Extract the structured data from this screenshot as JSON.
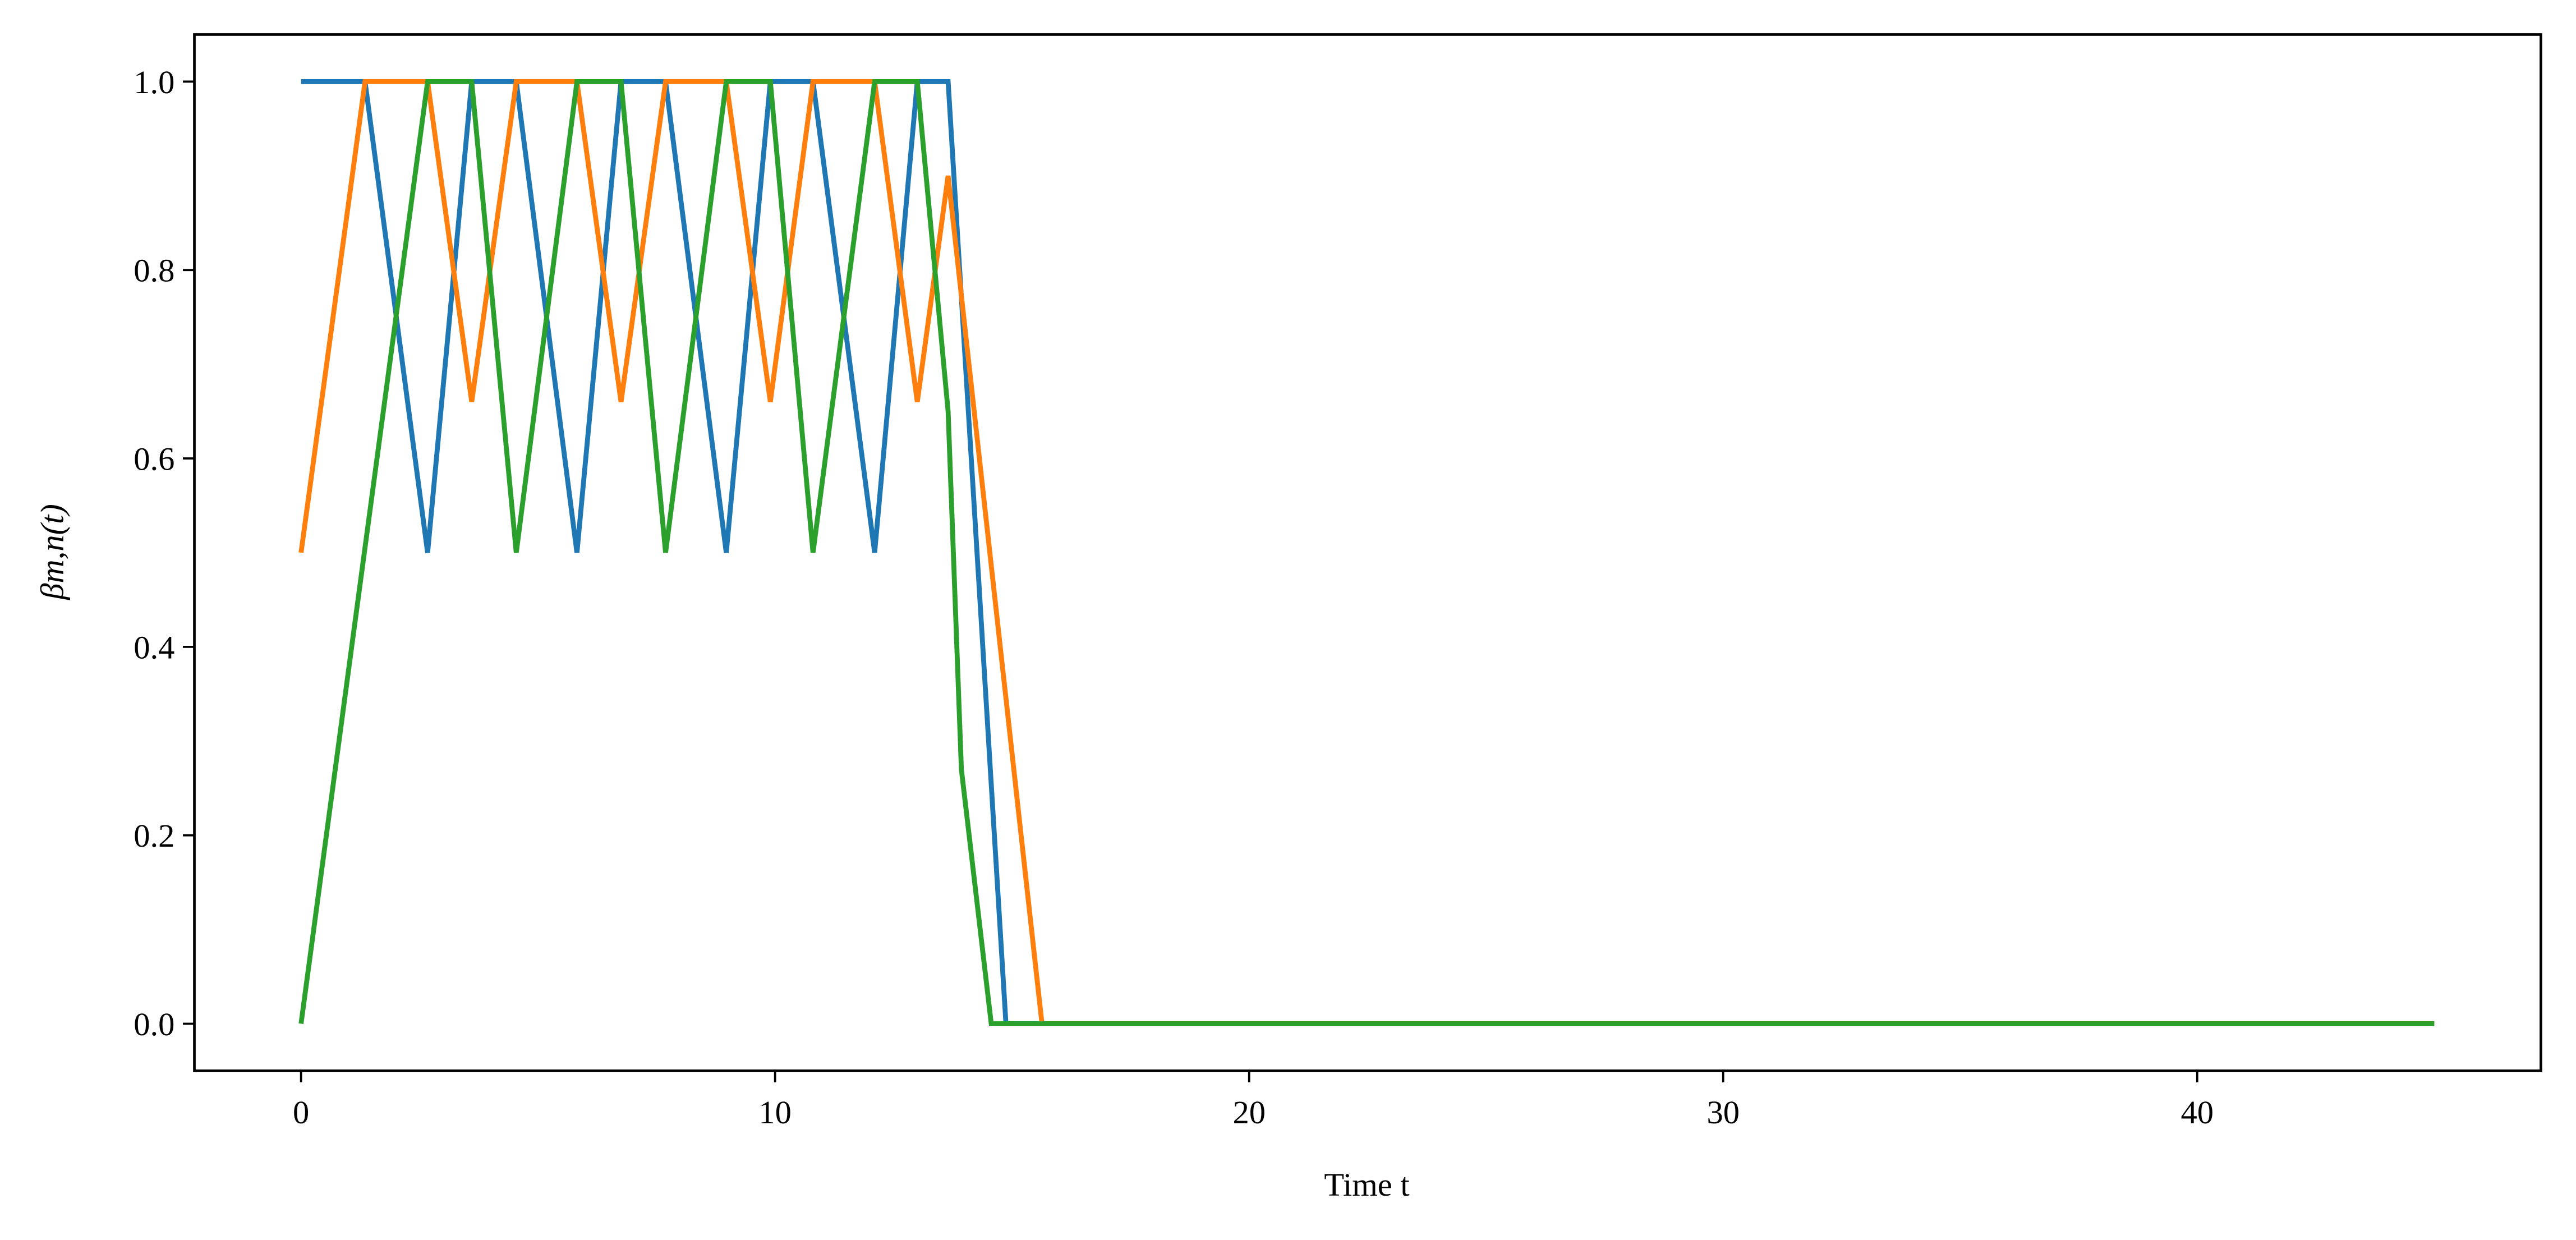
{
  "chart_data": {
    "type": "line",
    "xlabel": "Time t",
    "ylabel": "βm,n(t)",
    "xlim": [
      -2.25,
      47.25
    ],
    "ylim": [
      -0.05,
      1.05
    ],
    "xticks": [
      0,
      10,
      20,
      30,
      40
    ],
    "yticks": [
      {
        "value": 0,
        "label": "0.0"
      },
      {
        "value": 0.2,
        "label": "0.2"
      },
      {
        "value": 0.4,
        "label": "0.4"
      },
      {
        "value": 0.6,
        "label": "0.6"
      },
      {
        "value": 0.8,
        "label": "0.8"
      },
      {
        "value": 1,
        "label": "1.0"
      }
    ],
    "grid": false,
    "series": [
      {
        "color": "#1f77b4",
        "x": [
          0,
          1.35,
          2.67,
          3.6,
          4.54,
          5.82,
          6.75,
          7.69,
          8.97,
          9.9,
          10.8,
          12.1,
          13.0,
          13.65,
          14.87,
          45
        ],
        "values": [
          1,
          1,
          0.5,
          1,
          1,
          0.5,
          1,
          1,
          0.5,
          1,
          1,
          0.5,
          1,
          1,
          0,
          0
        ]
      },
      {
        "color": "#ff7f0e",
        "x": [
          0,
          1.35,
          2.67,
          3.6,
          4.54,
          5.82,
          6.75,
          7.69,
          8.97,
          9.9,
          10.8,
          12.1,
          13.0,
          13.65,
          15.63,
          45
        ],
        "values": [
          0.5,
          1,
          1,
          0.66,
          1,
          1,
          0.66,
          1,
          1,
          0.66,
          1,
          1,
          0.66,
          0.9,
          0,
          0
        ]
      },
      {
        "color": "#2ca02c",
        "x": [
          0,
          2.67,
          3.6,
          4.54,
          5.82,
          6.75,
          7.69,
          8.97,
          9.9,
          10.8,
          12.1,
          13.0,
          13.65,
          13.93,
          14.56,
          45
        ],
        "values": [
          0,
          1,
          1,
          0.5,
          1,
          1,
          0.5,
          1,
          1,
          0.5,
          1,
          1,
          0.65,
          0.27,
          0,
          0
        ]
      }
    ]
  }
}
